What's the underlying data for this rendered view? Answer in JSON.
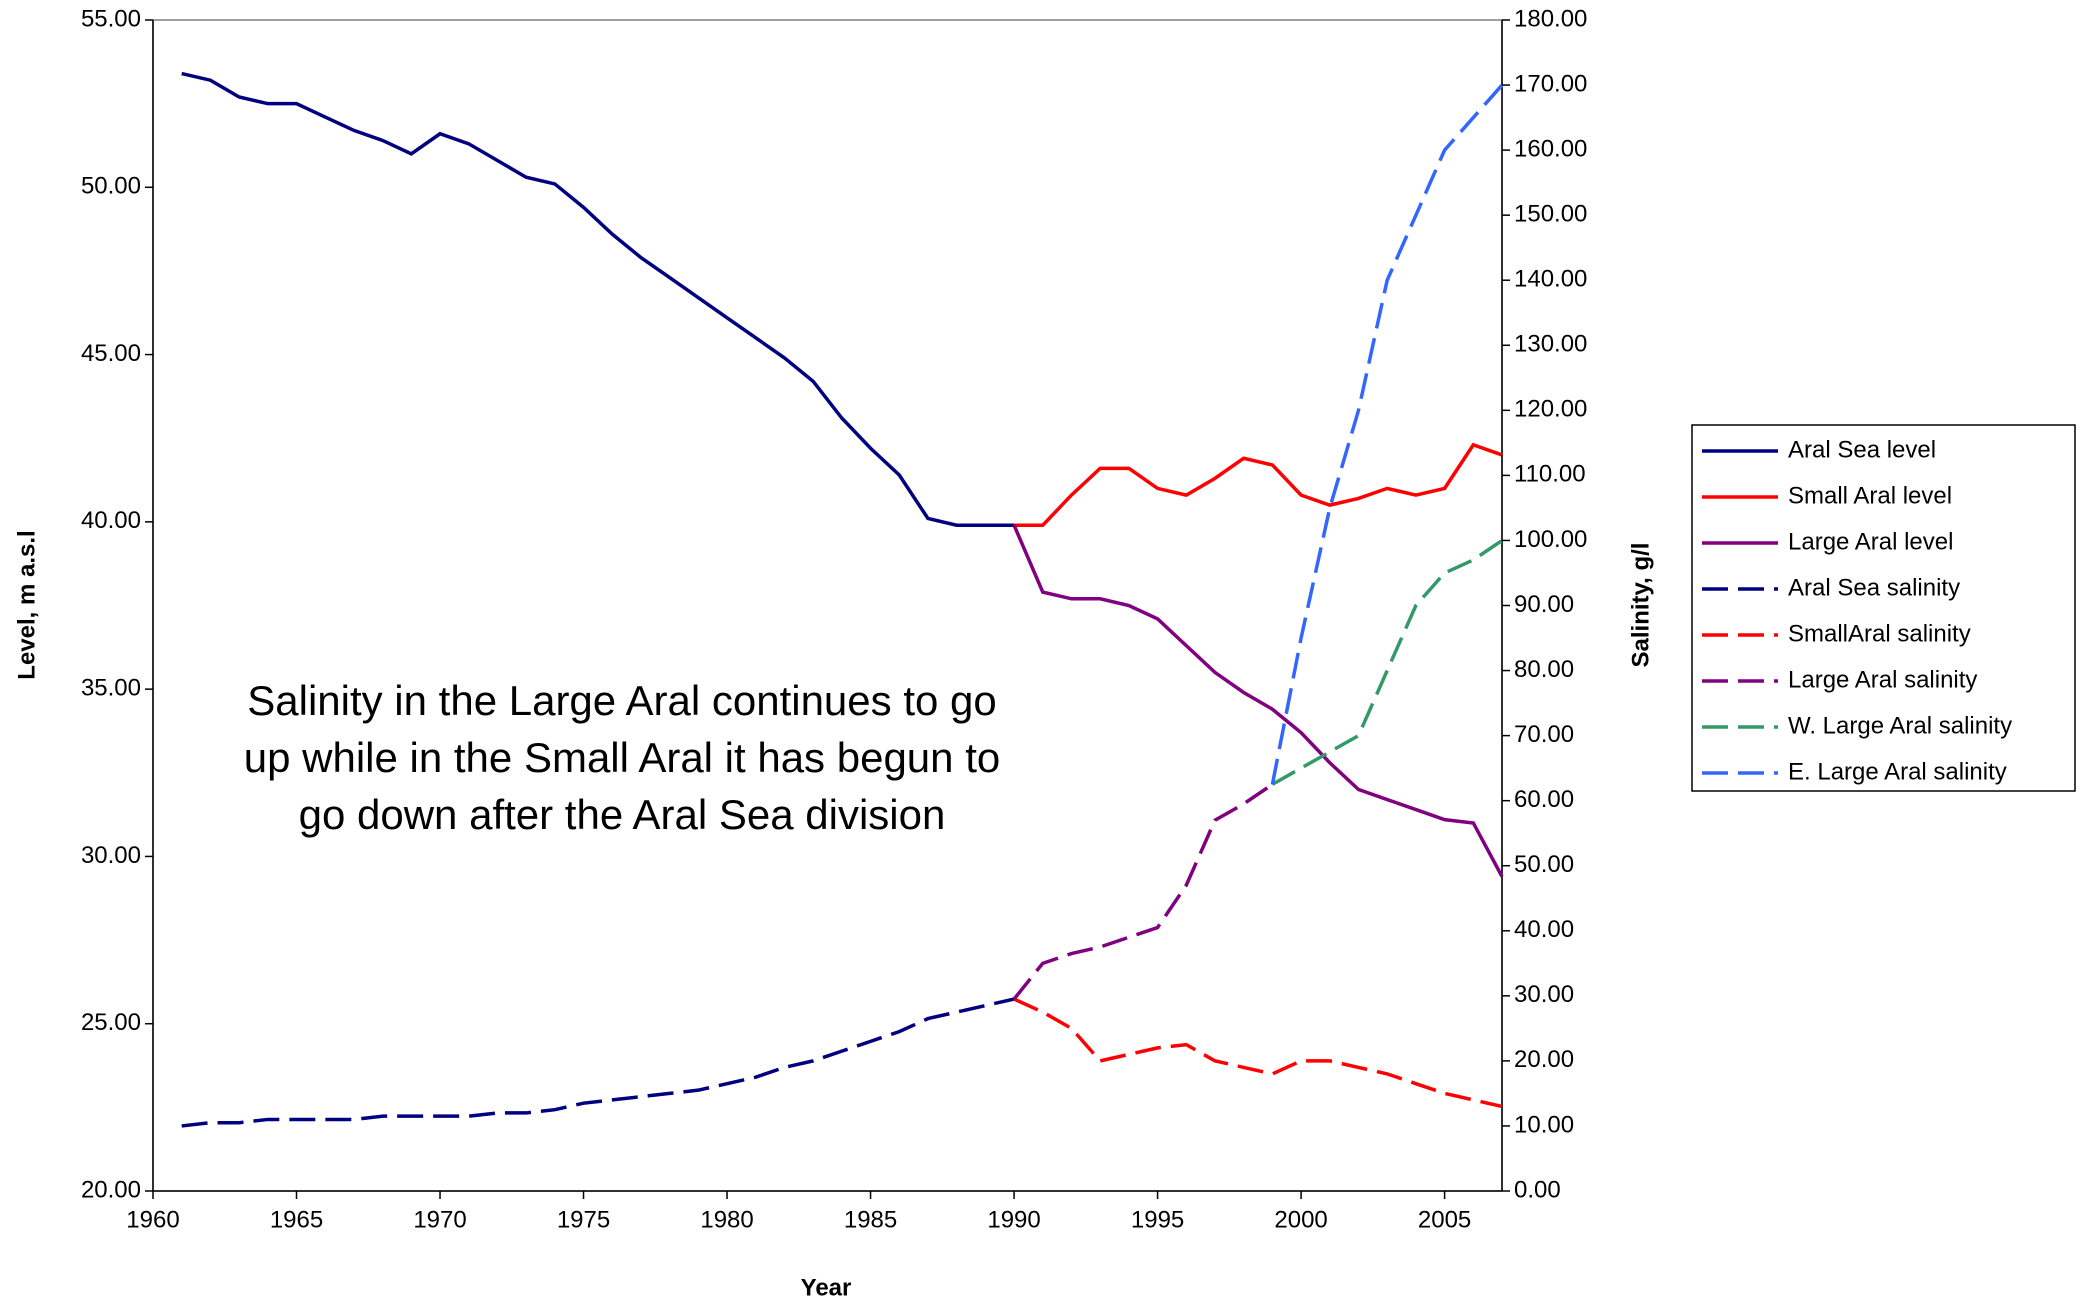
{
  "chart_data": {
    "type": "line",
    "x_label": "Year",
    "y_label": "Level, m a.s.l",
    "y2_label": "Salinity, g/l",
    "annotation": "Salinity in the Large Aral continues to go up while in the Small Aral it has begun to go down after the Aral Sea division",
    "x": [
      1961,
      1962,
      1963,
      1964,
      1965,
      1966,
      1967,
      1968,
      1969,
      1970,
      1971,
      1972,
      1973,
      1974,
      1975,
      1976,
      1977,
      1978,
      1979,
      1980,
      1981,
      1982,
      1983,
      1984,
      1985,
      1986,
      1987,
      1988,
      1989,
      1990,
      1991,
      1992,
      1993,
      1994,
      1995,
      1996,
      1997,
      1998,
      1999,
      2000,
      2001,
      2002,
      2003,
      2004,
      2005,
      2006,
      2007
    ],
    "xlim": [
      1960,
      2007
    ],
    "xticks": [
      1960,
      1965,
      1970,
      1975,
      1980,
      1985,
      1990,
      1995,
      2000,
      2005
    ],
    "ylim": [
      20,
      55
    ],
    "yticks": [
      {
        "value": 20,
        "label": "20.00"
      },
      {
        "value": 25,
        "label": "25.00"
      },
      {
        "value": 30,
        "label": "30.00"
      },
      {
        "value": 35,
        "label": "35.00"
      },
      {
        "value": 40,
        "label": "40.00"
      },
      {
        "value": 45,
        "label": "45.00"
      },
      {
        "value": 50,
        "label": "50.00"
      },
      {
        "value": 55,
        "label": "55.00"
      }
    ],
    "y2lim": [
      0,
      180
    ],
    "y2ticks": [
      {
        "value": 0,
        "label": "0.00"
      },
      {
        "value": 10,
        "label": "10.00"
      },
      {
        "value": 20,
        "label": "20.00"
      },
      {
        "value": 30,
        "label": "30.00"
      },
      {
        "value": 40,
        "label": "40.00"
      },
      {
        "value": 50,
        "label": "50.00"
      },
      {
        "value": 60,
        "label": "60.00"
      },
      {
        "value": 70,
        "label": "70.00"
      },
      {
        "value": 80,
        "label": "80.00"
      },
      {
        "value": 90,
        "label": "90.00"
      },
      {
        "value": 100,
        "label": "100.00"
      },
      {
        "value": 110,
        "label": "110.00"
      },
      {
        "value": 120,
        "label": "120.00"
      },
      {
        "value": 130,
        "label": "130.00"
      },
      {
        "value": 140,
        "label": "140.00"
      },
      {
        "value": 150,
        "label": "150.00"
      },
      {
        "value": 160,
        "label": "160.00"
      },
      {
        "value": 170,
        "label": "170.00"
      },
      {
        "value": 180,
        "label": "180.00"
      }
    ],
    "legend": "right",
    "series": [
      {
        "name": "Aral Sea level",
        "color": "#000080",
        "dashed": false,
        "values": [
          53.4,
          53.2,
          52.7,
          52.5,
          52.5,
          52.1,
          51.7,
          51.4,
          51.0,
          51.6,
          51.3,
          50.8,
          50.3,
          50.1,
          49.4,
          48.6,
          47.9,
          47.3,
          46.7,
          46.1,
          45.5,
          44.9,
          44.2,
          43.1,
          42.2,
          41.4,
          40.1,
          39.9,
          39.9,
          39.9,
          null,
          null,
          null,
          null,
          null,
          null,
          null,
          null,
          null,
          null,
          null,
          null,
          null,
          null,
          null,
          null,
          null
        ]
      },
      {
        "name": "Small Aral level",
        "color": "#ff0000",
        "dashed": false,
        "values": [
          null,
          null,
          null,
          null,
          null,
          null,
          null,
          null,
          null,
          null,
          null,
          null,
          null,
          null,
          null,
          null,
          null,
          null,
          null,
          null,
          null,
          null,
          null,
          null,
          null,
          null,
          null,
          null,
          null,
          39.9,
          39.9,
          40.8,
          41.6,
          41.6,
          41.0,
          40.8,
          41.3,
          41.9,
          41.7,
          40.8,
          40.5,
          40.7,
          41.0,
          40.8,
          41.0,
          42.3,
          42.0
        ]
      },
      {
        "name": "Large Aral level",
        "color": "#800080",
        "dashed": false,
        "values": [
          null,
          null,
          null,
          null,
          null,
          null,
          null,
          null,
          null,
          null,
          null,
          null,
          null,
          null,
          null,
          null,
          null,
          null,
          null,
          null,
          null,
          null,
          null,
          null,
          null,
          null,
          null,
          null,
          null,
          39.9,
          37.9,
          37.7,
          37.7,
          37.5,
          37.1,
          36.3,
          35.5,
          34.9,
          34.4,
          33.7,
          32.8,
          32.0,
          31.7,
          31.4,
          31.1,
          31.0,
          29.4
        ]
      },
      {
        "name": "Aral Sea salinity",
        "color": "#000080",
        "dashed": true,
        "axis": "y2",
        "values": [
          10,
          10.5,
          10.5,
          11,
          11,
          11,
          11,
          11.5,
          11.5,
          11.5,
          11.5,
          12,
          12,
          12.5,
          13.5,
          14,
          14.5,
          15,
          15.5,
          16.5,
          17.5,
          19,
          20,
          21.5,
          23,
          24.5,
          26.5,
          27.5,
          28.5,
          29.5,
          null,
          null,
          null,
          null,
          null,
          null,
          null,
          null,
          null,
          null,
          null,
          null,
          null,
          null,
          null,
          null,
          null
        ]
      },
      {
        "name": "SmallAral salinity",
        "color": "#ff0000",
        "dashed": true,
        "axis": "y2",
        "values": [
          null,
          null,
          null,
          null,
          null,
          null,
          null,
          null,
          null,
          null,
          null,
          null,
          null,
          null,
          null,
          null,
          null,
          null,
          null,
          null,
          null,
          null,
          null,
          null,
          null,
          null,
          null,
          null,
          null,
          29.5,
          27.5,
          25,
          20,
          21,
          22,
          22.5,
          20,
          19,
          18,
          20,
          20,
          19,
          18,
          16.5,
          15,
          14,
          13
        ]
      },
      {
        "name": "Large Aral salinity",
        "color": "#800080",
        "dashed": true,
        "axis": "y2",
        "values": [
          null,
          null,
          null,
          null,
          null,
          null,
          null,
          null,
          null,
          null,
          null,
          null,
          null,
          null,
          null,
          null,
          null,
          null,
          null,
          null,
          null,
          null,
          null,
          null,
          null,
          null,
          null,
          null,
          null,
          29.5,
          35,
          36.5,
          37.5,
          39,
          40.5,
          47,
          57,
          59.5,
          62.5,
          null,
          null,
          null,
          null,
          null,
          null,
          null,
          null
        ]
      },
      {
        "name": "W. Large Aral salinity",
        "color": "#339966",
        "dashed": true,
        "axis": "y2",
        "values": [
          null,
          null,
          null,
          null,
          null,
          null,
          null,
          null,
          null,
          null,
          null,
          null,
          null,
          null,
          null,
          null,
          null,
          null,
          null,
          null,
          null,
          null,
          null,
          null,
          null,
          null,
          null,
          null,
          null,
          null,
          null,
          null,
          null,
          null,
          null,
          null,
          null,
          null,
          62.5,
          65,
          67.5,
          70,
          80,
          90,
          95,
          97,
          100
        ]
      },
      {
        "name": "E. Large Aral salinity",
        "color": "#3366ff",
        "dashed": true,
        "axis": "y2",
        "values": [
          null,
          null,
          null,
          null,
          null,
          null,
          null,
          null,
          null,
          null,
          null,
          null,
          null,
          null,
          null,
          null,
          null,
          null,
          null,
          null,
          null,
          null,
          null,
          null,
          null,
          null,
          null,
          null,
          null,
          null,
          null,
          null,
          null,
          null,
          null,
          null,
          null,
          null,
          62.5,
          85,
          105,
          120,
          140,
          150,
          160,
          165,
          170
        ]
      }
    ]
  }
}
